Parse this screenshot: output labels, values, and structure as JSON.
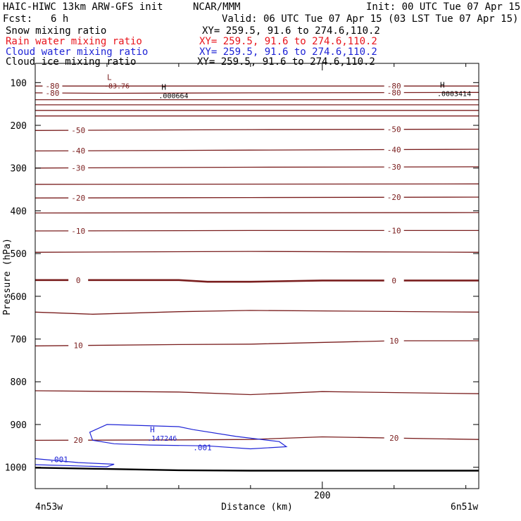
{
  "header": {
    "title_left": "HAIC-HIWC 13km ARW-GFS init",
    "org": "NCAR/MMM",
    "init": "Init: 00 UTC Tue 07 Apr 15",
    "fcst_label": "Fcst:",
    "fcst_value": "6 h",
    "valid": "Valid: 06 UTC Tue 07 Apr 15 (03 LST Tue 07 Apr 15)"
  },
  "fields": [
    {
      "label": "Snow mixing ratio",
      "xy": "XY= 259.5, 91.6 to 274.6,110.2",
      "color": "#000000"
    },
    {
      "label": "Rain water mixing ratio",
      "xy": "XY= 259.5, 91.6 to 274.6,110.2",
      "color": "#e8141c"
    },
    {
      "label": "Cloud water mixing ratio",
      "xy": "XY= 259.5, 91.6 to 274.6,110.2",
      "color": "#1f24d6"
    },
    {
      "label": "Cloud ice mixing ratio",
      "xy": "XY= 259.5, 91.6 to 274.6,110.2",
      "color": "#000000"
    }
  ],
  "axes": {
    "ylabel": "Pressure (hPa)",
    "xlabel": "Distance (km)",
    "left_corner": "4n53w",
    "right_corner": "6n51w"
  },
  "colors": {
    "temperature": "#7a1e1e",
    "cloud_water": "#1f24d6",
    "terrain": "#000000"
  },
  "chart_data": {
    "type": "line",
    "x_unit": "km",
    "y_unit": "hPa",
    "xlim": [
      0,
      309
    ],
    "ylim": [
      1050,
      55
    ],
    "y_scale": "linear-inverted",
    "y_ticks": [
      100,
      200,
      300,
      400,
      500,
      600,
      700,
      800,
      900,
      1000
    ],
    "y_tick_labels": [
      "100",
      "200",
      "300",
      "400",
      "500",
      "600",
      "700",
      "800",
      "900",
      "1000"
    ],
    "x_ticks": [
      200
    ],
    "x_tick_labels": [
      "200"
    ],
    "x_minor_ticks": [
      50,
      100,
      150,
      250,
      300
    ],
    "temperature_isotherms": [
      {
        "label": "-80",
        "points": [
          [
            0,
            108
          ],
          [
            309,
            108
          ]
        ]
      },
      {
        "label": "-80",
        "points": [
          [
            0,
            124
          ],
          [
            50,
            125
          ],
          [
            150,
            124
          ],
          [
            309,
            123
          ]
        ]
      },
      {
        "label": "",
        "points": [
          [
            0,
            140
          ],
          [
            309,
            140
          ]
        ]
      },
      {
        "label": "",
        "points": [
          [
            0,
            152
          ],
          [
            309,
            152
          ]
        ]
      },
      {
        "label": "",
        "points": [
          [
            0,
            165
          ],
          [
            309,
            165
          ]
        ]
      },
      {
        "label": "",
        "points": [
          [
            0,
            178
          ],
          [
            309,
            178
          ]
        ]
      },
      {
        "label": "-50",
        "points": [
          [
            0,
            212
          ],
          [
            150,
            210
          ],
          [
            309,
            209
          ]
        ]
      },
      {
        "label": "-40",
        "points": [
          [
            0,
            260
          ],
          [
            150,
            258
          ],
          [
            309,
            256
          ]
        ]
      },
      {
        "label": "-30",
        "points": [
          [
            0,
            300
          ],
          [
            150,
            298
          ],
          [
            309,
            297
          ]
        ]
      },
      {
        "label": "",
        "points": [
          [
            0,
            338
          ],
          [
            309,
            337
          ]
        ]
      },
      {
        "label": "-20",
        "points": [
          [
            0,
            370
          ],
          [
            150,
            369
          ],
          [
            309,
            368
          ]
        ]
      },
      {
        "label": "",
        "points": [
          [
            0,
            405
          ],
          [
            309,
            404
          ]
        ]
      },
      {
        "label": "-10",
        "points": [
          [
            0,
            447
          ],
          [
            150,
            446
          ],
          [
            309,
            446
          ]
        ]
      },
      {
        "label": "",
        "points": [
          [
            0,
            497
          ],
          [
            150,
            495
          ],
          [
            309,
            497
          ]
        ]
      },
      {
        "label": "0",
        "points": [
          [
            0,
            562
          ],
          [
            100,
            562
          ],
          [
            120,
            566
          ],
          [
            150,
            566
          ],
          [
            200,
            563
          ],
          [
            309,
            563
          ]
        ]
      },
      {
        "label": "",
        "points": [
          [
            0,
            637
          ],
          [
            40,
            642
          ],
          [
            100,
            636
          ],
          [
            150,
            633
          ],
          [
            309,
            637
          ]
        ]
      },
      {
        "label": "10",
        "points": [
          [
            0,
            716
          ],
          [
            100,
            713
          ],
          [
            150,
            712
          ],
          [
            250,
            704
          ],
          [
            309,
            704
          ]
        ]
      },
      {
        "label": "",
        "points": [
          [
            0,
            821
          ],
          [
            100,
            824
          ],
          [
            150,
            830
          ],
          [
            200,
            823
          ],
          [
            309,
            828
          ]
        ]
      },
      {
        "label": "20",
        "points": [
          [
            0,
            937
          ],
          [
            100,
            936
          ],
          [
            150,
            935
          ],
          [
            200,
            929
          ],
          [
            309,
            935
          ]
        ]
      }
    ],
    "cloud_water_contours": [
      {
        "label": ".001",
        "points": [
          [
            50,
            900
          ],
          [
            38,
            918
          ],
          [
            40,
            937
          ],
          [
            55,
            945
          ],
          [
            80,
            948
          ],
          [
            120,
            950
          ],
          [
            150,
            957
          ],
          [
            175,
            952
          ],
          [
            170,
            940
          ],
          [
            140,
            928
          ],
          [
            110,
            912
          ],
          [
            100,
            905
          ]
        ]
      },
      {
        "label": ".001",
        "points": [
          [
            0,
            980
          ],
          [
            30,
            989
          ],
          [
            55,
            993
          ],
          [
            50,
            999
          ],
          [
            30,
            997
          ],
          [
            0,
            994
          ]
        ]
      }
    ],
    "terrain_pressure": [
      [
        0,
        1001
      ],
      [
        50,
        1004
      ],
      [
        100,
        1007
      ],
      [
        150,
        1008
      ],
      [
        200,
        1008
      ],
      [
        250,
        1008
      ],
      [
        309,
        1008
      ]
    ],
    "extrema": [
      {
        "type": "L",
        "value": "-83.76",
        "x": 50,
        "y": 94
      },
      {
        "type": "H",
        "value": ".000664",
        "x": 88,
        "y": 117
      },
      {
        "type": "H",
        "value": ".0003414",
        "x": 282,
        "y": 112
      },
      {
        "type": "H",
        "value": ".147246",
        "x": 80,
        "y": 918
      }
    ]
  }
}
